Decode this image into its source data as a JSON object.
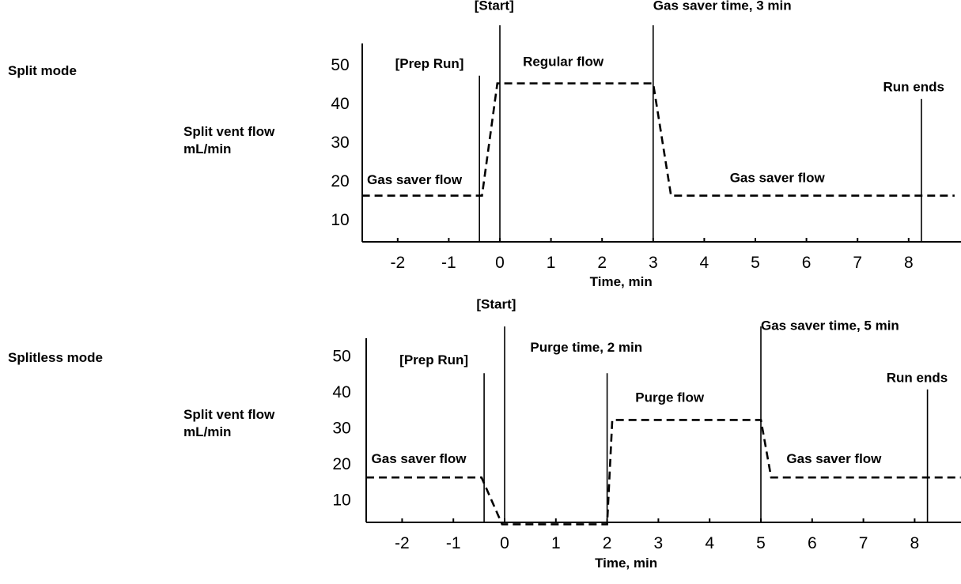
{
  "chart_data": [
    {
      "type": "line",
      "mode_label": "Split mode",
      "ylabel_lines": [
        "Split vent flow",
        "mL/min"
      ],
      "xlabel": "Time, min",
      "x_ticks": [
        -2,
        -1,
        0,
        1,
        2,
        3,
        4,
        5,
        6,
        7,
        8
      ],
      "y_ticks": [
        10,
        20,
        30,
        40,
        50
      ],
      "xlim": [
        -2.7,
        8.9
      ],
      "ylim": [
        3,
        60
      ],
      "series": [
        {
          "x": [
            -2.7,
            -0.35,
            -0.05,
            3.0,
            3.35,
            8.9
          ],
          "y": [
            16,
            16,
            45,
            45,
            16,
            16
          ]
        }
      ],
      "events": [
        {
          "x": -0.4,
          "ytop": 47,
          "label": "[Prep Run]",
          "label_x": -2.05,
          "label_y": 49
        },
        {
          "x": 0,
          "ytop": 60,
          "label": "[Start]",
          "label_x": -0.5,
          "label_y": 64
        },
        {
          "x": 3,
          "ytop": 60,
          "label": "Gas saver time, 3 min",
          "label_x": 3.0,
          "label_y": 64
        },
        {
          "x": 8.25,
          "ytop": 41,
          "label": "Run ends",
          "label_x": 7.5,
          "label_y": 43
        }
      ],
      "annotations": [
        {
          "text": "Regular flow",
          "x": 0.45,
          "y": 49.5
        },
        {
          "text": "Gas saver flow",
          "x": -2.6,
          "y": 19
        },
        {
          "text": "Gas saver flow",
          "x": 4.5,
          "y": 19.5
        }
      ]
    },
    {
      "type": "line",
      "mode_label": "Splitless mode",
      "ylabel_lines": [
        "Split vent flow",
        "mL/min"
      ],
      "xlabel": "Time, min",
      "x_ticks": [
        -2,
        -1,
        0,
        1,
        2,
        3,
        4,
        5,
        6,
        7,
        8
      ],
      "y_ticks": [
        10,
        20,
        30,
        40,
        50
      ],
      "xlim": [
        -2.7,
        8.9
      ],
      "ylim": [
        3,
        58
      ],
      "series": [
        {
          "x": [
            -2.7,
            -0.45,
            -0.05,
            2.0,
            2.1,
            5.0,
            5.2,
            8.9
          ],
          "y": [
            16,
            16,
            3,
            3,
            32,
            32,
            16,
            16
          ]
        }
      ],
      "events": [
        {
          "x": -0.4,
          "ytop": 45,
          "label": "[Prep Run]",
          "label_x": -2.05,
          "label_y": 47.5
        },
        {
          "x": 0,
          "ytop": 58,
          "label": "[Start]",
          "label_x": -0.55,
          "label_y": 63
        },
        {
          "x": 2,
          "ytop": 45,
          "label": "Purge time, 2 min",
          "label_x": 0.5,
          "label_y": 51
        },
        {
          "x": 5,
          "ytop": 58,
          "label": "Gas saver time, 5 min",
          "label_x": 5.0,
          "label_y": 57
        },
        {
          "x": 8.25,
          "ytop": 40.5,
          "label": "Run ends",
          "label_x": 7.45,
          "label_y": 42.5
        }
      ],
      "annotations": [
        {
          "text": "Purge flow",
          "x": 2.55,
          "y": 37
        },
        {
          "text": "Gas saver flow",
          "x": -2.6,
          "y": 20
        },
        {
          "text": "Gas saver flow",
          "x": 5.5,
          "y": 20
        }
      ]
    }
  ]
}
